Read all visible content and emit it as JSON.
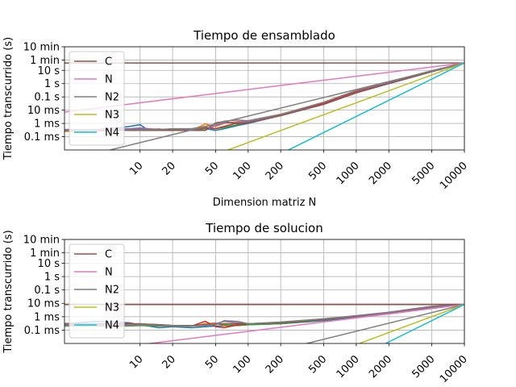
{
  "chart_data": [
    {
      "type": "line",
      "title": "Tiempo de ensamblado",
      "xlabel": "Dimension matriz N",
      "ylabel": "Tiempo transcurrido (s)",
      "xscale": "log",
      "yscale": "log",
      "xlim": [
        2,
        10000
      ],
      "ylim": [
        1e-05,
        600
      ],
      "xticks": [
        10,
        20,
        50,
        100,
        200,
        500,
        1000,
        2000,
        5000,
        10000
      ],
      "xtick_labels": [
        "10",
        "20",
        "50",
        "100",
        "200",
        "500",
        "1000",
        "2000",
        "5000",
        "10000"
      ],
      "yticks": [
        0.0001,
        0.001,
        0.01,
        0.1,
        1,
        10,
        60,
        600
      ],
      "ytick_labels": [
        "0.1 ms",
        "1 ms",
        "10 ms",
        "0.1 s",
        "1 s",
        "10 s",
        "1 min",
        "10 min"
      ],
      "grid": true,
      "legend_position": "top-left",
      "reference_lines": [
        {
          "name": "C",
          "color": "#8c564b",
          "x": [
            2,
            10000
          ],
          "y": [
            36,
            36
          ]
        },
        {
          "name": "N",
          "color": "#e377c2",
          "x": [
            2,
            10000
          ],
          "y": [
            0.0072,
            36
          ]
        },
        {
          "name": "N2",
          "color": "#7f7f7f",
          "x": [
            2,
            10000
          ],
          "y": [
            1.44e-06,
            36
          ]
        },
        {
          "name": "N3",
          "color": "#bcbd22",
          "x": [
            29,
            10000
          ],
          "y": [
            8.9e-07,
            36
          ]
        },
        {
          "name": "N4",
          "color": "#17becf",
          "x": [
            133,
            10000
          ],
          "y": [
            1e-06,
            36
          ]
        }
      ],
      "measured": [
        {
          "color": "#1f77b4",
          "x": [
            2,
            4,
            6,
            8,
            10,
            12,
            15,
            20,
            30,
            40,
            50,
            60,
            80,
            100,
            200,
            500,
            1000,
            2000,
            5000,
            10000
          ],
          "y": [
            0.00032,
            0.00035,
            0.00045,
            0.0006,
            0.0008,
            0.0003,
            0.0003,
            0.00035,
            0.0003,
            0.0004,
            0.0003,
            0.0004,
            0.0007,
            0.001,
            0.004,
            0.03,
            0.2,
            1.0,
            8,
            36
          ]
        },
        {
          "color": "#ff7f0e",
          "x": [
            2,
            4,
            6,
            8,
            10,
            12,
            15,
            20,
            30,
            40,
            50,
            60,
            80,
            100,
            200,
            500,
            1000,
            2000,
            5000,
            10000
          ],
          "y": [
            0.00025,
            0.00025,
            0.0003,
            0.0003,
            0.0003,
            0.0004,
            0.0003,
            0.0004,
            0.0003,
            0.0009,
            0.0006,
            0.001,
            0.0014,
            0.0016,
            0.005,
            0.035,
            0.25,
            1.2,
            9,
            36
          ]
        },
        {
          "color": "#2ca02c",
          "x": [
            2,
            4,
            6,
            8,
            10,
            15,
            20,
            30,
            40,
            50,
            60,
            80,
            100,
            200,
            500,
            1000,
            2000,
            5000,
            10000
          ],
          "y": [
            0.00028,
            0.0003,
            0.00035,
            0.00035,
            0.0004,
            0.0003,
            0.00035,
            0.0003,
            0.0004,
            0.0004,
            0.0005,
            0.0008,
            0.0012,
            0.004,
            0.03,
            0.22,
            1.1,
            8.5,
            36
          ]
        },
        {
          "color": "#d62728",
          "x": [
            2,
            4,
            6,
            8,
            10,
            15,
            20,
            30,
            40,
            50,
            60,
            80,
            100,
            200,
            500,
            1000,
            2000,
            5000,
            10000
          ],
          "y": [
            0.0003,
            0.0003,
            0.0003,
            0.00035,
            0.00035,
            0.00038,
            0.0003,
            0.0003,
            0.0005,
            0.0004,
            0.0006,
            0.0011,
            0.0013,
            0.0045,
            0.032,
            0.24,
            1.15,
            8.8,
            36
          ]
        },
        {
          "color": "#9467bd",
          "x": [
            2,
            4,
            6,
            8,
            10,
            15,
            20,
            30,
            40,
            50,
            60,
            80,
            100,
            200,
            500,
            1000,
            2000,
            5000,
            10000
          ],
          "y": [
            0.00035,
            0.00035,
            0.0004,
            0.0004,
            0.00045,
            0.00035,
            0.0003,
            0.00035,
            0.0003,
            0.0007,
            0.0011,
            0.0012,
            0.0014,
            0.0042,
            0.028,
            0.21,
            1.05,
            8.2,
            36
          ]
        },
        {
          "color": "#8c564b",
          "x": [
            2,
            4,
            6,
            8,
            10,
            15,
            20,
            30,
            40,
            50,
            60,
            80,
            100,
            200,
            500,
            1000,
            2000,
            5000,
            10000
          ],
          "y": [
            0.0003,
            0.0003,
            0.0003,
            0.0003,
            0.0003,
            0.0003,
            0.0003,
            0.0003,
            0.0003,
            0.0011,
            0.0014,
            0.0009,
            0.0011,
            0.0038,
            0.027,
            0.2,
            1.0,
            8.0,
            36
          ]
        },
        {
          "color": "#7f7f7f",
          "x": [
            2,
            4,
            6,
            8,
            10,
            15,
            20,
            30,
            40,
            50,
            60,
            80,
            100,
            200,
            500,
            1000,
            2000,
            5000,
            10000
          ],
          "y": [
            0.0003,
            0.0003,
            0.00032,
            0.00035,
            0.00035,
            0.00035,
            0.0004,
            0.0004,
            0.0006,
            0.0009,
            0.0015,
            0.0018,
            0.0016,
            0.0048,
            0.04,
            0.3,
            1.3,
            9.5,
            36
          ]
        }
      ]
    },
    {
      "type": "line",
      "title": "Tiempo de solucion",
      "xlabel": "",
      "ylabel": "Tiempo transcurrido (s)",
      "xscale": "log",
      "yscale": "log",
      "xlim": [
        2,
        10000
      ],
      "ylim": [
        1e-05,
        600
      ],
      "xticks": [
        10,
        20,
        50,
        100,
        200,
        500,
        1000,
        2000,
        5000,
        10000
      ],
      "xtick_labels": [
        "10",
        "20",
        "50",
        "100",
        "200",
        "500",
        "1000",
        "2000",
        "5000",
        "10000"
      ],
      "yticks": [
        0.0001,
        0.001,
        0.01,
        0.1,
        1,
        10,
        60,
        600
      ],
      "ytick_labels": [
        "0.1 ms",
        "1 ms",
        "10 ms",
        "0.1 s",
        "1 s",
        "10 s",
        "1 min",
        "10 min"
      ],
      "grid": true,
      "legend_position": "top-left",
      "reference_lines": [
        {
          "name": "C",
          "color": "#8c564b",
          "x": [
            2,
            10000
          ],
          "y": [
            0.0082,
            0.0082
          ]
        },
        {
          "name": "N",
          "color": "#e377c2",
          "x": [
            2,
            10000
          ],
          "y": [
            1.6e-06,
            0.0082
          ]
        },
        {
          "name": "N2",
          "color": "#7f7f7f",
          "x": [
            100,
            10000
          ],
          "y": [
            8.2e-07,
            0.0082
          ]
        },
        {
          "name": "N3",
          "color": "#bcbd22",
          "x": [
            464,
            10000
          ],
          "y": [
            8.2e-07,
            0.0082
          ]
        },
        {
          "name": "N4",
          "color": "#17becf",
          "x": [
            1000,
            10000
          ],
          "y": [
            8.2e-07,
            0.0082
          ]
        }
      ],
      "measured": [
        {
          "color": "#1f77b4",
          "x": [
            2,
            4,
            6,
            8,
            10,
            12,
            15,
            20,
            30,
            40,
            50,
            60,
            80,
            100,
            200,
            500,
            1000,
            2000,
            5000,
            10000
          ],
          "y": [
            0.0003,
            0.00045,
            0.0004,
            0.00035,
            0.00025,
            0.0002,
            0.00015,
            0.00018,
            0.00015,
            0.00018,
            0.0002,
            0.0002,
            0.00022,
            0.00025,
            0.0003,
            0.0005,
            0.0009,
            0.0016,
            0.0045,
            0.0082
          ]
        },
        {
          "color": "#ff7f0e",
          "x": [
            2,
            4,
            6,
            8,
            10,
            15,
            20,
            30,
            40,
            50,
            60,
            80,
            100,
            200,
            500,
            1000,
            2000,
            5000,
            10000
          ],
          "y": [
            0.00025,
            0.00025,
            0.00025,
            0.0003,
            0.0003,
            0.00025,
            0.0002,
            0.0002,
            0.0003,
            0.00035,
            0.0002,
            0.0003,
            0.0003,
            0.00035,
            0.0006,
            0.001,
            0.0018,
            0.005,
            0.0082
          ]
        },
        {
          "color": "#2ca02c",
          "x": [
            2,
            4,
            6,
            8,
            10,
            15,
            20,
            30,
            40,
            50,
            60,
            80,
            100,
            200,
            500,
            1000,
            2000,
            5000,
            10000
          ],
          "y": [
            0.0002,
            0.0002,
            0.0002,
            0.0002,
            0.00022,
            0.0002,
            0.0002,
            0.0002,
            0.00022,
            0.0003,
            0.00025,
            0.00022,
            0.00025,
            0.0003,
            0.00055,
            0.001,
            0.0017,
            0.0048,
            0.0082
          ]
        },
        {
          "color": "#d62728",
          "x": [
            2,
            4,
            6,
            8,
            10,
            15,
            20,
            30,
            40,
            50,
            60,
            80,
            100,
            200,
            500,
            1000,
            2000,
            5000,
            10000
          ],
          "y": [
            0.00028,
            0.00028,
            0.0003,
            0.0003,
            0.00028,
            0.00025,
            0.00022,
            0.0002,
            0.00045,
            0.00018,
            0.00015,
            0.00025,
            0.0003,
            0.00035,
            0.0006,
            0.0011,
            0.002,
            0.0055,
            0.0082
          ]
        },
        {
          "color": "#9467bd",
          "x": [
            2,
            4,
            6,
            8,
            10,
            15,
            20,
            30,
            40,
            50,
            60,
            80,
            100,
            200,
            500,
            1000,
            2000,
            5000,
            10000
          ],
          "y": [
            0.00025,
            0.00025,
            0.00025,
            0.00028,
            0.0003,
            0.00022,
            0.0002,
            0.0002,
            0.00025,
            0.0003,
            0.00045,
            0.00035,
            0.0003,
            0.00035,
            0.0006,
            0.001,
            0.0019,
            0.0052,
            0.0082
          ]
        },
        {
          "color": "#8c564b",
          "x": [
            2,
            4,
            6,
            8,
            10,
            15,
            20,
            30,
            40,
            50,
            60,
            80,
            100,
            200,
            500,
            1000,
            2000,
            5000,
            10000
          ],
          "y": [
            0.0003,
            0.0003,
            0.0003,
            0.00028,
            0.00028,
            0.00025,
            0.00022,
            0.00022,
            0.00025,
            0.00028,
            0.0003,
            0.0003,
            0.0003,
            0.00036,
            0.00062,
            0.0011,
            0.0021,
            0.0056,
            0.0082
          ]
        },
        {
          "color": "#7f7f7f",
          "x": [
            2,
            4,
            6,
            8,
            10,
            15,
            20,
            30,
            40,
            50,
            60,
            80,
            100,
            200,
            500,
            1000,
            2000,
            5000,
            10000
          ],
          "y": [
            0.00022,
            0.00022,
            0.00022,
            0.00022,
            0.00025,
            0.00022,
            0.0002,
            0.0002,
            0.00022,
            0.00025,
            0.0005,
            0.00045,
            0.0003,
            0.0004,
            0.0007,
            0.0012,
            0.0022,
            0.006,
            0.0082
          ]
        }
      ]
    }
  ]
}
